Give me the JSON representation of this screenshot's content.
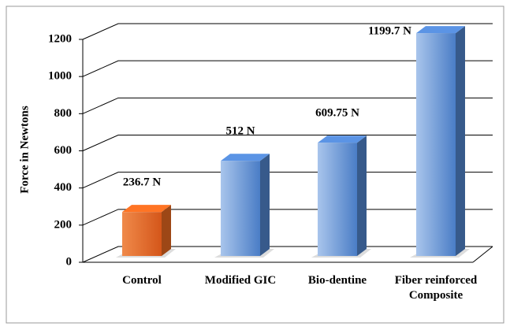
{
  "chart_data": {
    "type": "bar3d",
    "y_label": "Force in Newtons",
    "categories": [
      "Control",
      "Modified GIC",
      "Bio-dentine",
      "Fiber reinforced Composite"
    ],
    "values": [
      236.7,
      512,
      609.75,
      1199.7
    ],
    "value_labels": [
      "236.7 N",
      "512 N",
      "609.75 N",
      "1199.7 N"
    ],
    "colors": [
      "#e0651f",
      "#4f81c7",
      "#4f81c7",
      "#4f81c7"
    ],
    "ylim": [
      0,
      1200
    ],
    "yticks": [
      0,
      200,
      400,
      600,
      800,
      1000,
      1200
    ],
    "grid": true
  }
}
